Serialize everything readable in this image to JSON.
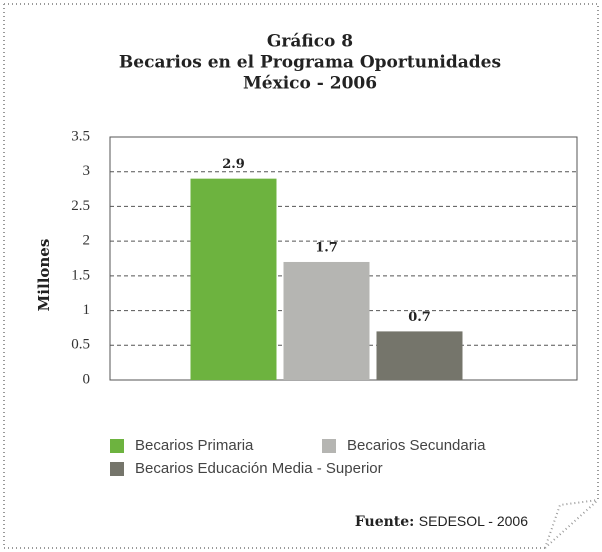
{
  "chart_data": {
    "type": "bar",
    "title": [
      "Gráfico 8",
      "Becarios en el Programa Oportunidades",
      "México - 2006"
    ],
    "ylabel": "Millones",
    "categories": [
      null
    ],
    "series": [
      {
        "name": "Becarios Primaria",
        "color": "#6db33f",
        "values": [
          2.9
        ]
      },
      {
        "name": "Becarios Secundaria",
        "color": "#b5b5b2",
        "values": [
          1.7
        ]
      },
      {
        "name": "Becarios Educación Media - Superior",
        "color": "#75756b",
        "values": [
          0.7
        ]
      }
    ],
    "ylim": [
      0,
      3.5
    ],
    "yticks": [
      0,
      0.5,
      1,
      1.5,
      2,
      2.5,
      3,
      3.5
    ],
    "grid": true,
    "legend": "bottom",
    "source_label": "Fuente:",
    "source": "SEDESOL - 2006"
  }
}
